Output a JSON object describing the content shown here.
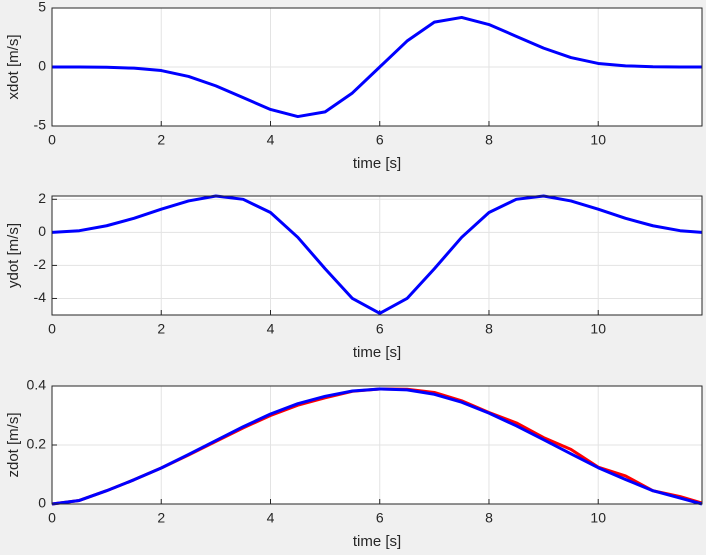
{
  "chart_data": [
    {
      "type": "line",
      "xlabel": "time [s]",
      "ylabel": "xdot [m/s]",
      "x": [
        0,
        0.5,
        1,
        1.5,
        2,
        2.5,
        3,
        3.5,
        4,
        4.5,
        5,
        5.5,
        6,
        6.5,
        7,
        7.5,
        8,
        8.5,
        9,
        9.5,
        10,
        10.5,
        11,
        11.5,
        11.9
      ],
      "series": [
        {
          "color": "#0000ff",
          "values": [
            0,
            0,
            -0.02,
            -0.1,
            -0.3,
            -0.8,
            -1.6,
            -2.6,
            -3.6,
            -4.2,
            -3.8,
            -2.2,
            0,
            2.2,
            3.8,
            4.2,
            3.6,
            2.6,
            1.6,
            0.8,
            0.3,
            0.1,
            0.02,
            0,
            0
          ]
        }
      ],
      "xlim": [
        0,
        11.9
      ],
      "xticks": [
        0,
        2,
        4,
        6,
        8,
        10
      ],
      "ylim": [
        -5,
        5
      ],
      "yticks": [
        -5,
        0,
        5
      ],
      "grid": true
    },
    {
      "type": "line",
      "xlabel": "time [s]",
      "ylabel": "ydot [m/s]",
      "x": [
        0,
        0.5,
        1,
        1.5,
        2,
        2.5,
        3,
        3.5,
        4,
        4.5,
        5,
        5.5,
        6,
        6.5,
        7,
        7.5,
        8,
        8.5,
        9,
        9.5,
        10,
        10.5,
        11,
        11.5,
        11.9
      ],
      "series": [
        {
          "color": "#0000ff",
          "values": [
            0,
            0.1,
            0.4,
            0.85,
            1.4,
            1.9,
            2.2,
            2.0,
            1.2,
            -0.3,
            -2.2,
            -4.0,
            -4.9,
            -4.0,
            -2.2,
            -0.3,
            1.2,
            2.0,
            2.2,
            1.9,
            1.4,
            0.85,
            0.4,
            0.1,
            0
          ]
        }
      ],
      "xlim": [
        0,
        11.9
      ],
      "xticks": [
        0,
        2,
        4,
        6,
        8,
        10
      ],
      "ylim": [
        -5,
        2.2
      ],
      "yticks": [
        -4,
        -2,
        0,
        2
      ],
      "grid": true
    },
    {
      "type": "line",
      "xlabel": "time [s]",
      "ylabel": "zdot [m/s]",
      "x": [
        0,
        0.5,
        1,
        1.5,
        2,
        2.5,
        3,
        3.5,
        4,
        4.5,
        5,
        5.5,
        6,
        6.5,
        7,
        7.5,
        8,
        8.5,
        9,
        9.5,
        10,
        10.5,
        11,
        11.5,
        11.9
      ],
      "series": [
        {
          "color": "#ff0000",
          "values": [
            0,
            0.012,
            0.045,
            0.082,
            0.122,
            0.166,
            0.212,
            0.258,
            0.3,
            0.335,
            0.36,
            0.382,
            0.39,
            0.389,
            0.378,
            0.35,
            0.31,
            0.275,
            0.225,
            0.185,
            0.125,
            0.095,
            0.045,
            0.025,
            0.003
          ]
        },
        {
          "color": "#0000ff",
          "values": [
            0,
            0.012,
            0.045,
            0.082,
            0.122,
            0.168,
            0.215,
            0.262,
            0.305,
            0.34,
            0.365,
            0.383,
            0.39,
            0.387,
            0.372,
            0.345,
            0.308,
            0.265,
            0.218,
            0.17,
            0.123,
            0.083,
            0.045,
            0.02,
            0
          ]
        }
      ],
      "xlim": [
        0,
        11.9
      ],
      "xticks": [
        0,
        2,
        4,
        6,
        8,
        10
      ],
      "ylim": [
        0,
        0.4
      ],
      "yticks": [
        0,
        0.2,
        0.4
      ],
      "grid": true
    }
  ]
}
